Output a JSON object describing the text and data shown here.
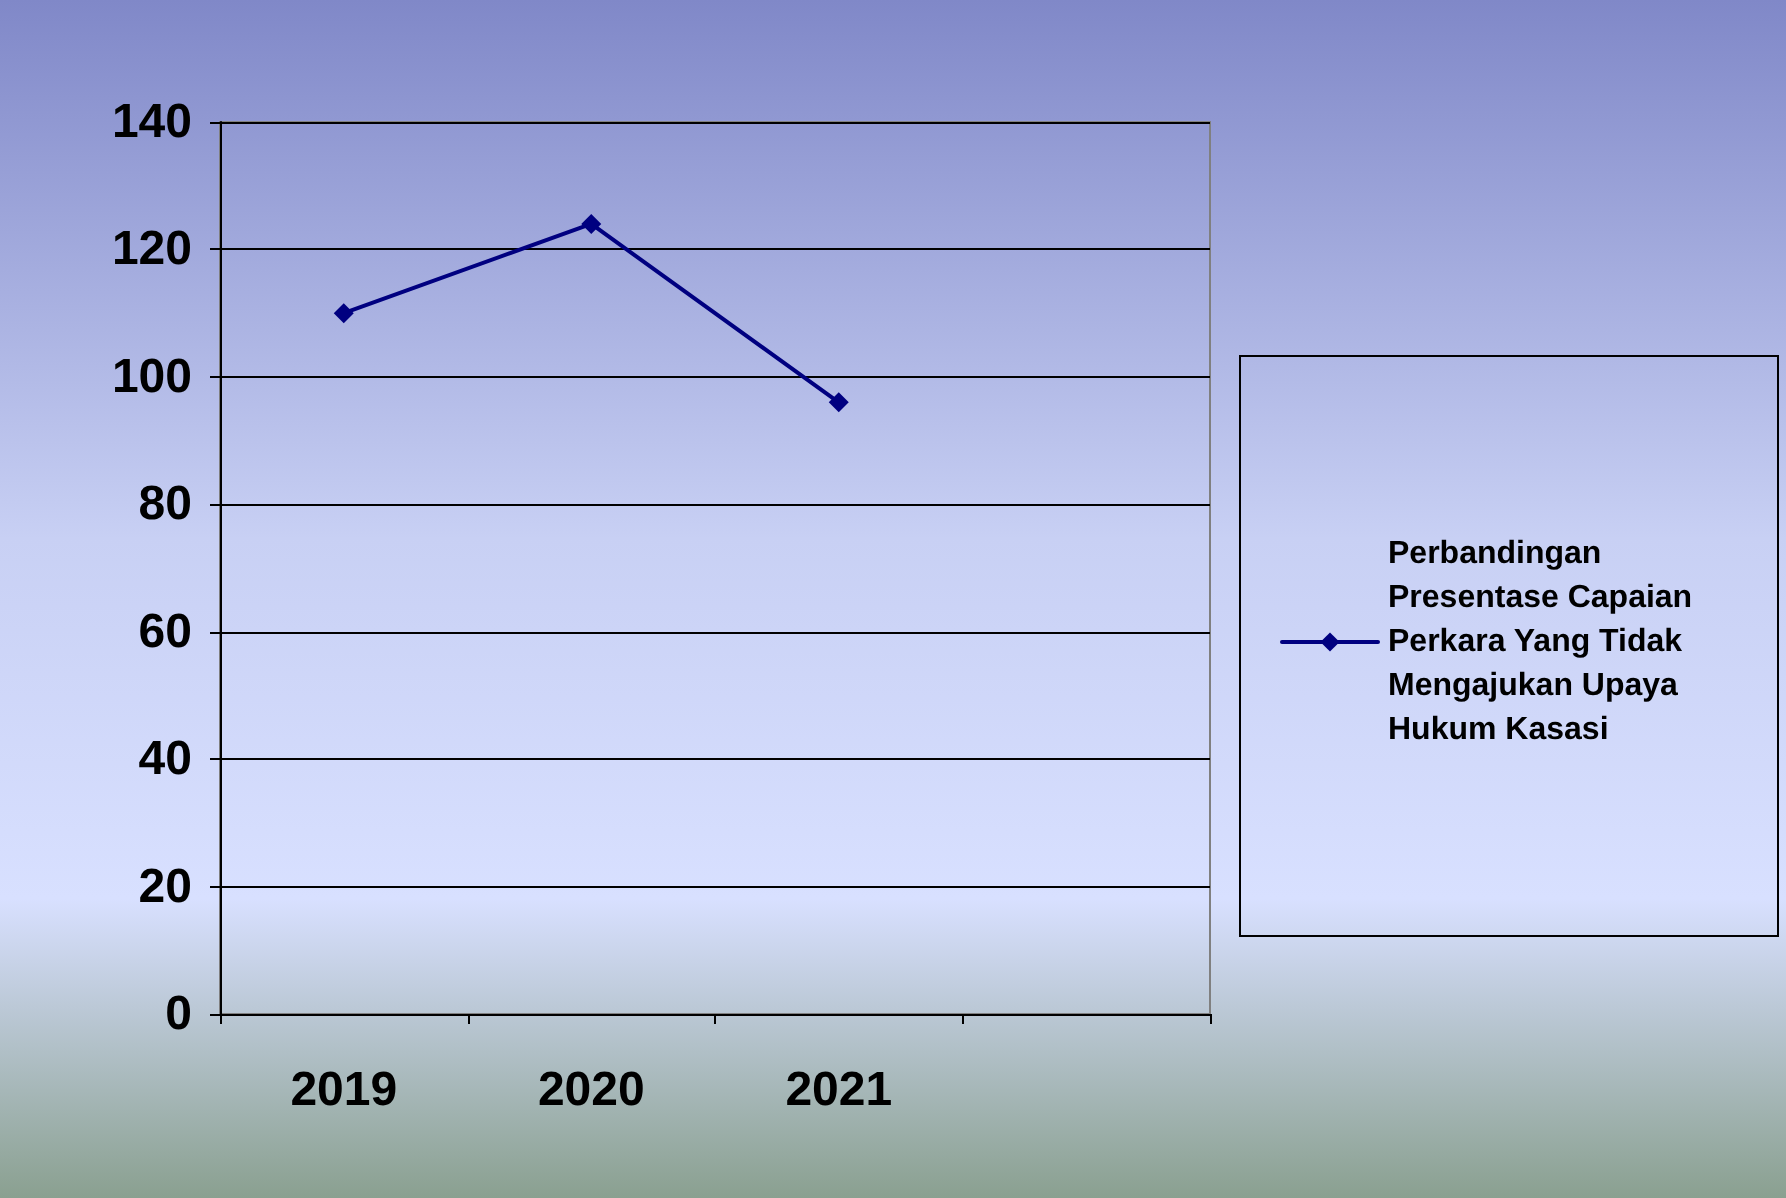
{
  "chart_data": {
    "type": "line",
    "categories": [
      "2019",
      "2020",
      "2021",
      null
    ],
    "series": [
      {
        "name": "Perbandingan Presentase Capaian Perkara Yang Tidak Mengajukan Upaya Hukum Kasasi",
        "color": "#000080",
        "values": [
          110,
          124,
          96,
          null
        ]
      }
    ],
    "ylim": [
      0,
      140
    ],
    "yticks": [
      0,
      20,
      40,
      60,
      80,
      100,
      120,
      140
    ],
    "grid": "y",
    "legend": "right",
    "marker": "diamond",
    "line_style": "solid"
  }
}
